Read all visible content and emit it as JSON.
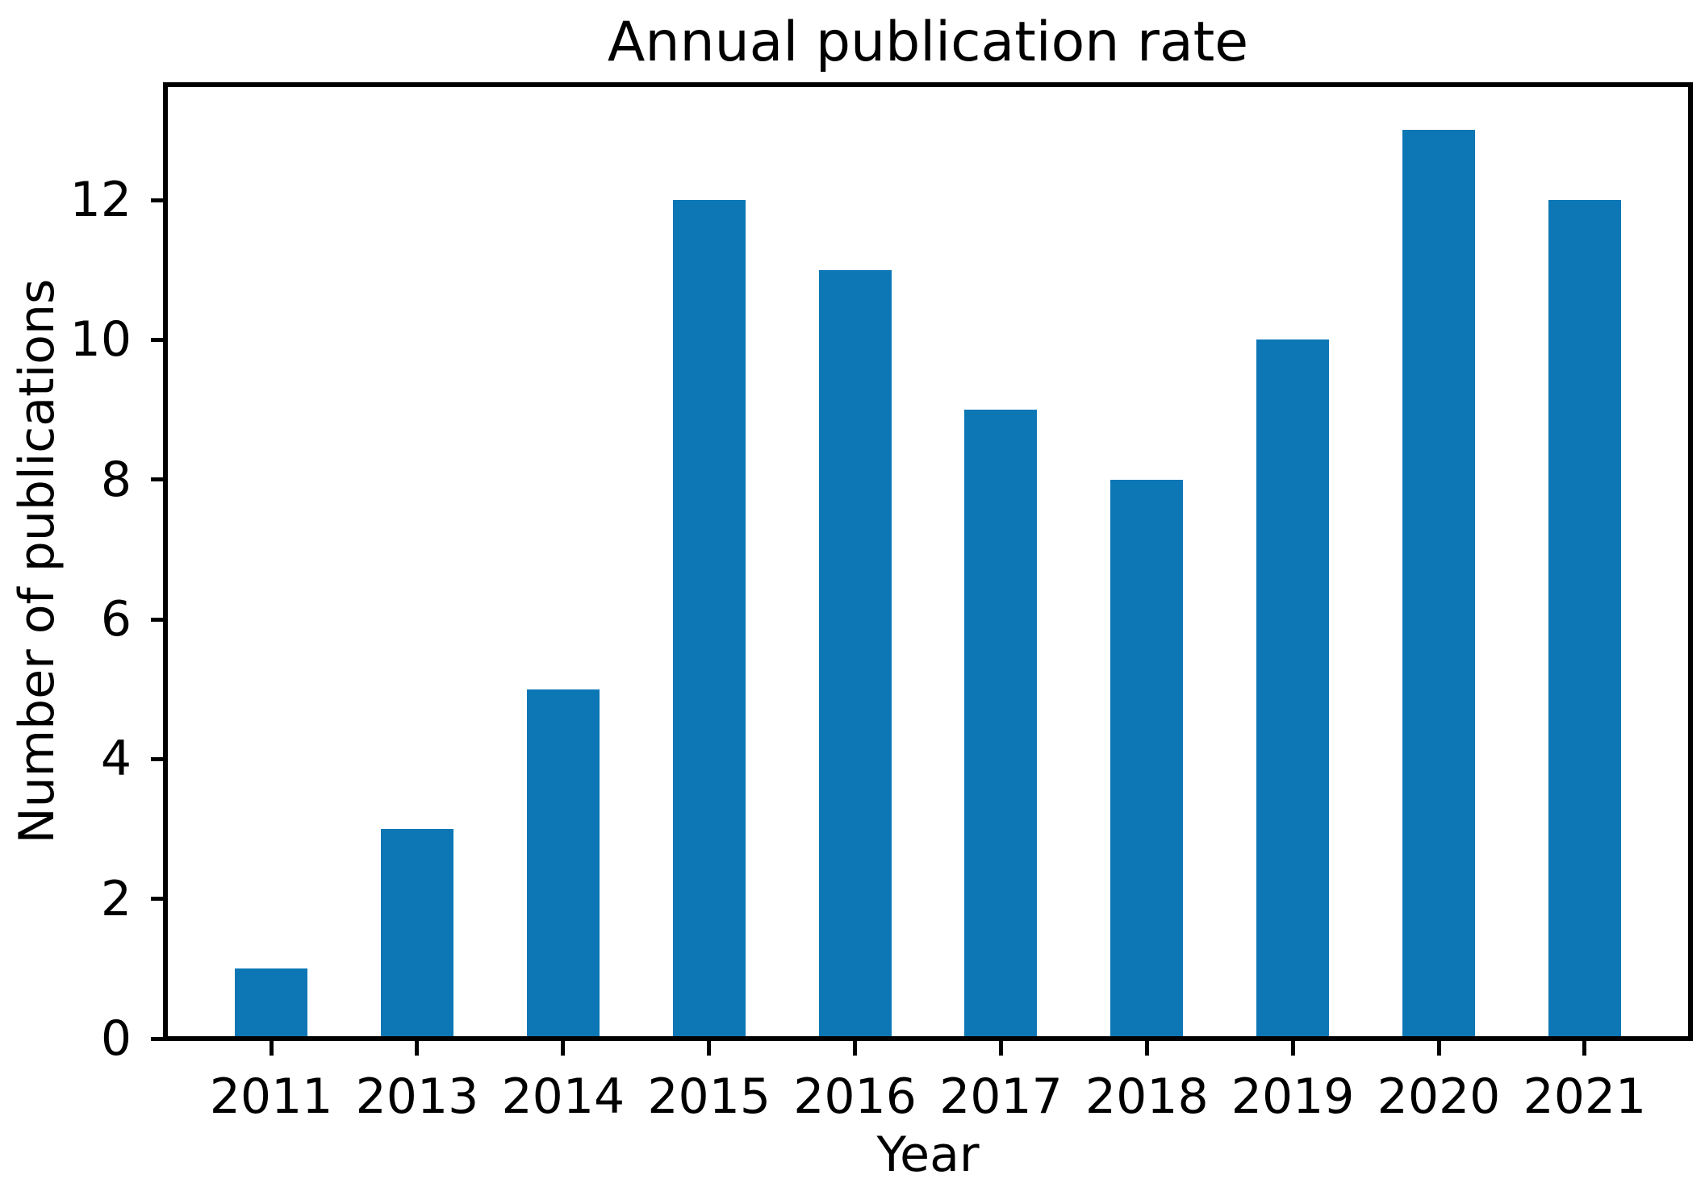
{
  "chart_data": {
    "type": "bar",
    "title": "Annual publication rate",
    "xlabel": "Year",
    "ylabel": "Number of publications",
    "categories": [
      "2011",
      "2013",
      "2014",
      "2015",
      "2016",
      "2017",
      "2018",
      "2019",
      "2020",
      "2021"
    ],
    "values": [
      1,
      3,
      5,
      12,
      11,
      9,
      8,
      10,
      13,
      12
    ],
    "yticks": [
      0,
      2,
      4,
      6,
      8,
      10,
      12
    ],
    "ylim": [
      0,
      13.65
    ],
    "bar_color": "#0d77b6",
    "axis_color": "#000000",
    "background_color": "#ffffff",
    "grid": false,
    "legend": null,
    "bar_width_fraction": 0.5
  }
}
